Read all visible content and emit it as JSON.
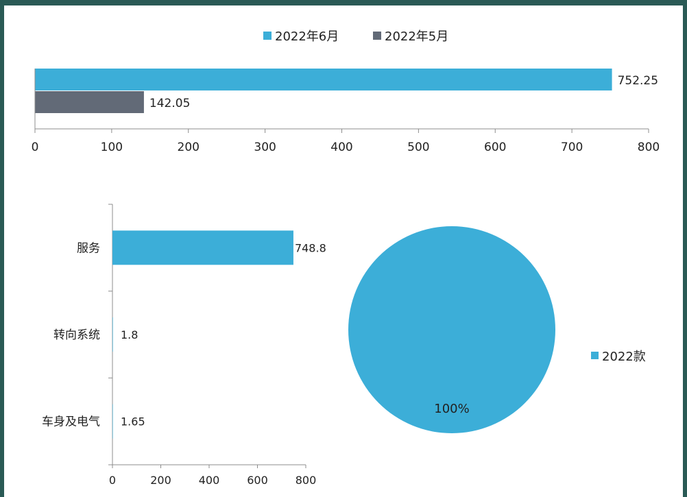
{
  "colors": {
    "background_frame": "#2a5a55",
    "series_blue": "#3caed8",
    "series_gray": "#626a77",
    "axis": "#8c8c8c"
  },
  "chart_data": [
    {
      "type": "bar",
      "orientation": "horizontal",
      "categories": [
        ""
      ],
      "series": [
        {
          "name": "2022年6月",
          "values": [
            752.25
          ],
          "color": "#3caed8"
        },
        {
          "name": "2022年5月",
          "values": [
            142.05
          ],
          "color": "#626a77"
        }
      ],
      "xlim": [
        0,
        800
      ],
      "ticks": [
        0,
        100,
        200,
        300,
        400,
        500,
        600,
        700,
        800
      ],
      "data_labels": [
        "752.25",
        "142.05"
      ],
      "legend_position": "top-center",
      "grid": false
    },
    {
      "type": "bar",
      "orientation": "horizontal",
      "categories": [
        "服务",
        "转向系统",
        "车身及电气"
      ],
      "values": [
        748.8,
        1.8,
        1.65
      ],
      "data_labels": [
        "748.8",
        "1.8",
        "1.65"
      ],
      "xlim": [
        0,
        800
      ],
      "ticks": [
        0,
        200,
        400,
        600,
        800
      ],
      "color": "#3caed8",
      "grid": false
    },
    {
      "type": "pie",
      "labels": [
        "2022款"
      ],
      "values": [
        100
      ],
      "data_labels": [
        "100%"
      ],
      "color": "#3caed8",
      "legend_position": "right"
    }
  ]
}
